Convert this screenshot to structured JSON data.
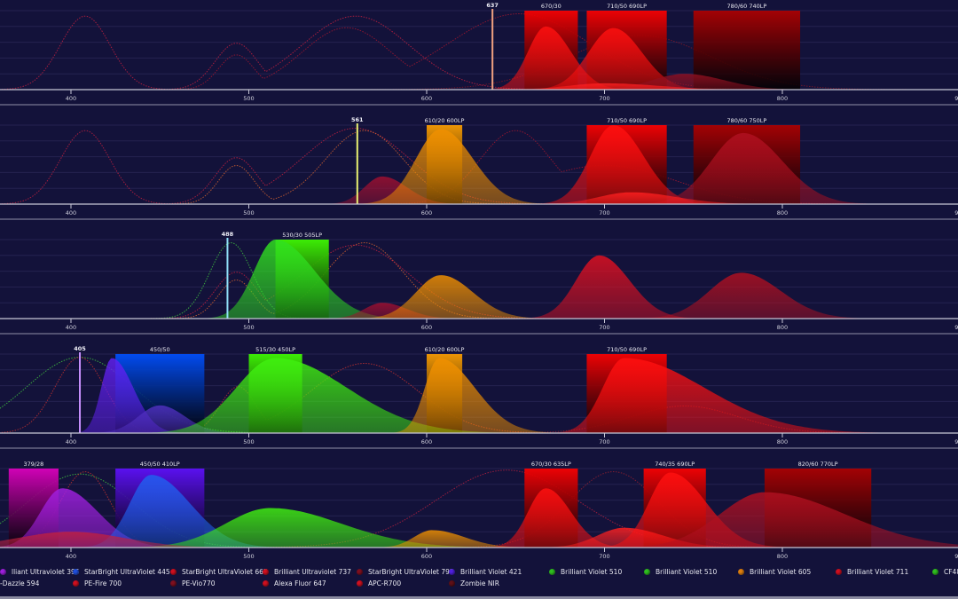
{
  "chart_data": {
    "type": "area",
    "xlim": [
      360,
      900
    ],
    "x_ticks": [
      400,
      500,
      600,
      700,
      800,
      900
    ],
    "grid": true,
    "panels": [
      {
        "laser": {
          "label": "637",
          "nm": 637,
          "color": "#f0a080"
        },
        "filters": [
          {
            "label": "670/30",
            "min": 655,
            "max": 685,
            "color": "#ff0000"
          },
          {
            "label": "710/50 690LP",
            "min": 690,
            "max": 735,
            "color": "#ff0000"
          },
          {
            "label": "780/60 740LP",
            "min": 750,
            "max": 810,
            "color": "#b00000"
          }
        ],
        "emission": [
          {
            "peak": 667,
            "height": 0.8,
            "sl": 10,
            "sr": 14,
            "color": "#ff1010"
          },
          {
            "peak": 705,
            "height": 0.78,
            "sl": 14,
            "sr": 16,
            "color": "#ff1010"
          },
          {
            "peak": 745,
            "height": 0.2,
            "sl": 18,
            "sr": 22,
            "color": "#901020"
          },
          {
            "peak": 700,
            "height": 0.08,
            "sl": 20,
            "sr": 30,
            "color": "#ff2020"
          }
        ],
        "excitation": [
          {
            "peaks": [
              [
                408,
                0.95,
                14
              ],
              [
                493,
                0.6,
                12
              ],
              [
                560,
                0.95,
                30
              ]
            ],
            "color": "#c02040"
          },
          {
            "peaks": [
              [
                493,
                0.45,
                10
              ],
              [
                555,
                0.8,
                25
              ],
              [
                652,
                0.98,
                40
              ]
            ],
            "color": "#a01830"
          },
          {
            "peaks": [
              [
                720,
                0.7,
                40
              ]
            ],
            "color": "#801828"
          }
        ]
      },
      {
        "laser": {
          "label": "561",
          "nm": 561,
          "color": "#e8f070"
        },
        "filters": [
          {
            "label": "610/20 600LP",
            "min": 600,
            "max": 620,
            "color": "#ffa000"
          },
          {
            "label": "710/50 690LP",
            "min": 690,
            "max": 735,
            "color": "#ff0000"
          },
          {
            "label": "780/60 750LP",
            "min": 750,
            "max": 810,
            "color": "#b00000"
          }
        ],
        "emission": [
          {
            "peak": 575,
            "height": 0.35,
            "sl": 10,
            "sr": 14,
            "color": "#a01030"
          },
          {
            "peak": 608,
            "height": 0.95,
            "sl": 14,
            "sr": 18,
            "color": "#f09000"
          },
          {
            "peak": 705,
            "height": 1.0,
            "sl": 13,
            "sr": 17,
            "color": "#ff1010"
          },
          {
            "peak": 778,
            "height": 0.9,
            "sl": 18,
            "sr": 22,
            "color": "#b01020"
          },
          {
            "peak": 715,
            "height": 0.15,
            "sl": 18,
            "sr": 25,
            "color": "#ff2020"
          }
        ],
        "excitation": [
          {
            "peaks": [
              [
                408,
                0.95,
                14
              ],
              [
                493,
                0.6,
                12
              ],
              [
                560,
                0.98,
                30
              ]
            ],
            "color": "#c02040"
          },
          {
            "peaks": [
              [
                493,
                0.5,
                10
              ],
              [
                565,
                0.95,
                22
              ]
            ],
            "color": "#d06030"
          },
          {
            "peaks": [
              [
                650,
                0.95,
                20
              ],
              [
                700,
                0.5,
                40
              ]
            ],
            "color": "#a01830"
          }
        ]
      },
      {
        "laser": {
          "label": "488",
          "nm": 488,
          "color": "#90e0f8"
        },
        "filters": [
          {
            "label": "530/30 505LP",
            "min": 515,
            "max": 545,
            "color": "#40ff00"
          }
        ],
        "emission": [
          {
            "peak": 515,
            "height": 1.0,
            "sl": 12,
            "sr": 22,
            "color": "#30e020"
          },
          {
            "peak": 575,
            "height": 0.2,
            "sl": 10,
            "sr": 14,
            "color": "#a01030"
          },
          {
            "peak": 608,
            "height": 0.55,
            "sl": 14,
            "sr": 18,
            "color": "#f09000"
          },
          {
            "peak": 697,
            "height": 0.8,
            "sl": 13,
            "sr": 17,
            "color": "#e01020"
          },
          {
            "peak": 777,
            "height": 0.58,
            "sl": 18,
            "sr": 22,
            "color": "#b01020"
          }
        ],
        "excitation": [
          {
            "peaks": [
              [
                490,
                0.98,
                12
              ]
            ],
            "color": "#40c040"
          },
          {
            "peaks": [
              [
                493,
                0.5,
                10
              ],
              [
                565,
                0.98,
                22
              ]
            ],
            "color": "#d06030"
          },
          {
            "peaks": [
              [
                493,
                0.6,
                12
              ],
              [
                560,
                0.95,
                30
              ]
            ],
            "color": "#c02040"
          }
        ]
      },
      {
        "laser": {
          "label": "405",
          "nm": 405,
          "color": "#c890ff"
        },
        "filters": [
          {
            "label": "450/50",
            "min": 425,
            "max": 475,
            "color": "#0050ff"
          },
          {
            "label": "515/30 450LP",
            "min": 500,
            "max": 530,
            "color": "#40ff00"
          },
          {
            "label": "610/20 600LP",
            "min": 600,
            "max": 620,
            "color": "#ffa000"
          },
          {
            "label": "710/50 690LP",
            "min": 690,
            "max": 735,
            "color": "#ff0000"
          }
        ],
        "emission": [
          {
            "peak": 423,
            "height": 0.95,
            "sl": 6,
            "sr": 12,
            "color": "#6020f0"
          },
          {
            "peak": 450,
            "height": 0.35,
            "sl": 12,
            "sr": 14,
            "color": "#5030c0"
          },
          {
            "peak": 515,
            "height": 0.95,
            "sl": 22,
            "sr": 40,
            "color": "#40f010"
          },
          {
            "peak": 607,
            "height": 0.95,
            "sl": 8,
            "sr": 20,
            "color": "#f09000"
          },
          {
            "peak": 711,
            "height": 0.95,
            "sl": 12,
            "sr": 45,
            "color": "#ff1010"
          }
        ],
        "excitation": [
          {
            "peaks": [
              [
                405,
                0.98,
                30
              ]
            ],
            "color": "#40c040"
          },
          {
            "peaks": [
              [
                405,
                0.98,
                14
              ],
              [
                494,
                0.6,
                10
              ],
              [
                565,
                0.9,
                30
              ]
            ],
            "color": "#c03030"
          },
          {
            "peaks": [
              [
                745,
                0.35,
                30
              ]
            ],
            "color": "#902030"
          }
        ]
      },
      {
        "laser": null,
        "filters": [
          {
            "label": "379/28",
            "min": 365,
            "max": 393,
            "color": "#e000c0"
          },
          {
            "label": "450/50 410LP",
            "min": 425,
            "max": 475,
            "color": "#6010ff"
          },
          {
            "label": "670/30 635LP",
            "min": 655,
            "max": 685,
            "color": "#ff0000"
          },
          {
            "label": "740/35 690LP",
            "min": 722,
            "max": 757,
            "color": "#ff0000"
          },
          {
            "label": "820/60 770LP",
            "min": 790,
            "max": 850,
            "color": "#b00000"
          }
        ],
        "emission": [
          {
            "peak": 395,
            "height": 0.75,
            "sl": 12,
            "sr": 20,
            "color": "#a020e0"
          },
          {
            "peak": 445,
            "height": 0.92,
            "sl": 12,
            "sr": 22,
            "color": "#2060f0"
          },
          {
            "peak": 512,
            "height": 0.5,
            "sl": 25,
            "sr": 40,
            "color": "#40f010"
          },
          {
            "peak": 603,
            "height": 0.22,
            "sl": 10,
            "sr": 18,
            "color": "#f09000"
          },
          {
            "peak": 667,
            "height": 0.75,
            "sl": 10,
            "sr": 14,
            "color": "#ff1010"
          },
          {
            "peak": 711,
            "height": 0.25,
            "sl": 15,
            "sr": 22,
            "color": "#ff2020"
          },
          {
            "peak": 737,
            "height": 0.95,
            "sl": 12,
            "sr": 20,
            "color": "#ff1010"
          },
          {
            "peak": 790,
            "height": 0.7,
            "sl": 25,
            "sr": 45,
            "color": "#b01020"
          },
          {
            "peak": 400,
            "height": 0.2,
            "sl": 30,
            "sr": 30,
            "color": "#c02040"
          }
        ],
        "excitation": [
          {
            "peaks": [
              [
                405,
                0.95,
                30
              ]
            ],
            "color": "#40c040"
          },
          {
            "peaks": [
              [
                408,
                0.98,
                14
              ]
            ],
            "color": "#c03030"
          },
          {
            "peaks": [
              [
                645,
                1.0,
                40
              ]
            ],
            "color": "#b02040"
          },
          {
            "peaks": [
              [
                705,
                0.98,
                25
              ]
            ],
            "color": "#902030"
          }
        ]
      }
    ]
  },
  "legend": {
    "row1": [
      {
        "label": "lliant Ultraviolet 395",
        "color": "#a020e0"
      },
      {
        "label": "StarBright UltraViolet 445",
        "color": "#2050e0"
      },
      {
        "label": "StarBright UltraViolet 665",
        "color": "#d01020"
      },
      {
        "label": "Brilliant Ultraviolet 737",
        "color": "#d01020"
      },
      {
        "label": "StarBright UltraViolet 795",
        "color": "#801020"
      },
      {
        "label": "Brilliant Violet 421",
        "color": "#5020e0"
      },
      {
        "label": "Brilliant Violet 510",
        "color": "#30c020"
      },
      {
        "label": "Brilliant Violet 510",
        "color": "#30c020"
      },
      {
        "label": "Brilliant Violet 605",
        "color": "#e08010"
      },
      {
        "label": "Brilliant Violet 711",
        "color": "#d01020"
      },
      {
        "label": "CF48",
        "color": "#30c020"
      }
    ],
    "row2": [
      {
        "label": "-Dazzle 594",
        "color": null
      },
      {
        "label": "PE-Fire 700",
        "color": "#d01020"
      },
      {
        "label": "PE-Vio770",
        "color": "#801020"
      },
      {
        "label": "Alexa Fluor 647",
        "color": "#d01020"
      },
      {
        "label": "APC-R700",
        "color": "#d01020"
      },
      {
        "label": "Zombie NIR",
        "color": "#601018"
      }
    ]
  }
}
